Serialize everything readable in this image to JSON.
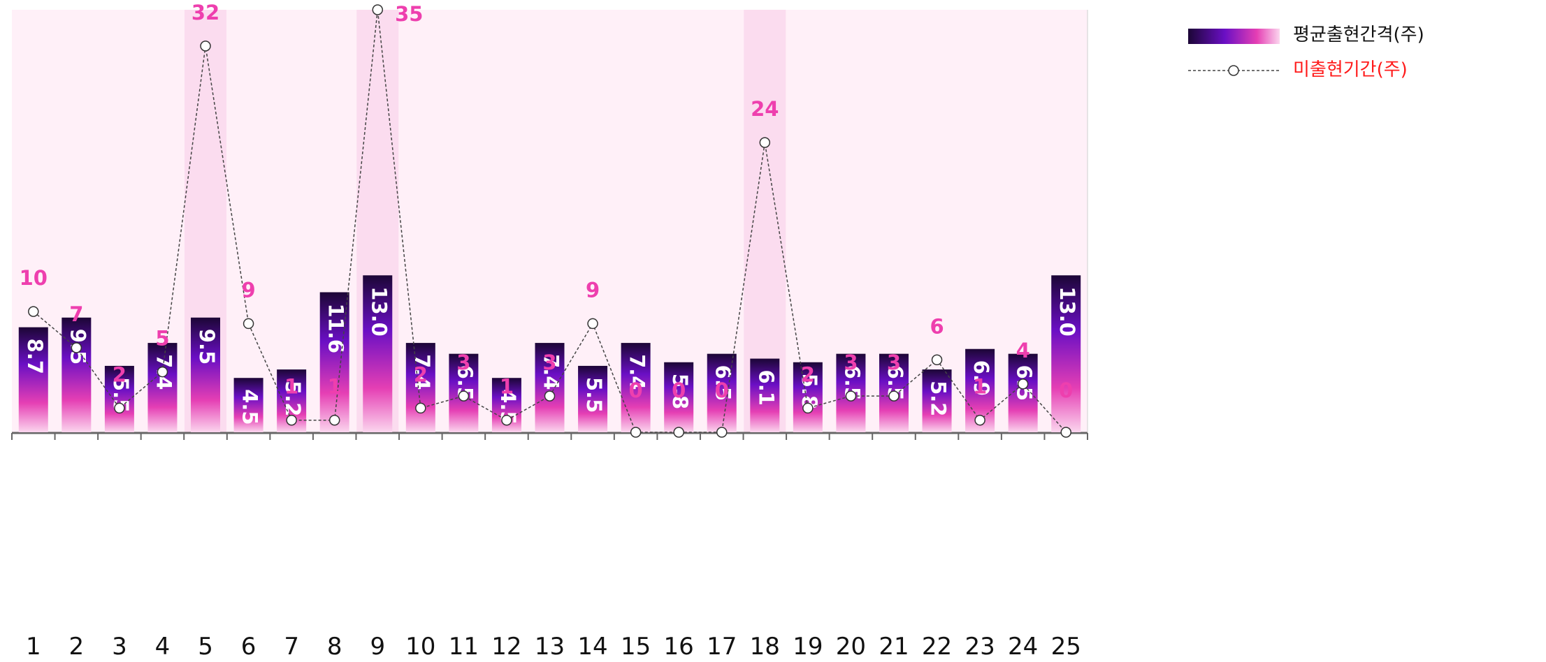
{
  "chart_data": {
    "type": "bar",
    "categories": [
      "1",
      "2",
      "3",
      "4",
      "5",
      "6",
      "7",
      "8",
      "9",
      "10",
      "11",
      "12",
      "13",
      "14",
      "15",
      "16",
      "17",
      "18",
      "19",
      "20",
      "21",
      "22",
      "23",
      "24",
      "25"
    ],
    "series": [
      {
        "name": "평균출현간격(주)",
        "type": "bar",
        "values": [
          8.7,
          9.5,
          5.5,
          7.4,
          9.5,
          4.5,
          5.2,
          11.6,
          13.0,
          7.4,
          6.5,
          4.5,
          7.4,
          5.5,
          7.4,
          5.8,
          6.5,
          6.1,
          5.8,
          6.5,
          6.5,
          5.2,
          6.9,
          6.5,
          13.0
        ],
        "value_labels": [
          "8.7",
          "9.5",
          "5.5",
          "7.4",
          "9.5",
          "4.5",
          "5.2",
          "11.6",
          "13.0",
          "7.4",
          "6.5",
          "4.5",
          "7.4",
          "5.5",
          "7.4",
          "5.8",
          "6.5",
          "6.1",
          "5.8",
          "6.5",
          "6.5",
          "5.2",
          "6.9",
          "6.5",
          "13.0"
        ]
      },
      {
        "name": "미출현기간(주)",
        "type": "line",
        "values": [
          10,
          7,
          2,
          5,
          32,
          9,
          1,
          1,
          35,
          2,
          3,
          1,
          3,
          9,
          0,
          0,
          0,
          24,
          2,
          3,
          3,
          6,
          1,
          4,
          0
        ],
        "value_labels": [
          "10",
          "7",
          "2",
          "5",
          "32",
          "9",
          "1",
          "1",
          "35",
          "2",
          "3",
          "1",
          "3",
          "9",
          "0",
          "0",
          "0",
          "24",
          "2",
          "3",
          "3",
          "6",
          "1",
          "4",
          "0"
        ]
      }
    ],
    "highlighted_categories": [
      "5",
      "9",
      "18"
    ],
    "ylim": [
      0,
      35
    ],
    "legend_position": "top-right",
    "colors": {
      "plot_background": "#fff0f8",
      "highlight_band": "#fbdcef",
      "bar_top": "#1c0636",
      "bar_mid": "#6a0fc4",
      "bar_low": "#e53fb4",
      "bar_bottom": "#fbd6ee",
      "line": "#444444",
      "point_label": "#ee3fae",
      "legend_line_label": "#ff1a1a",
      "axis": "#666666"
    }
  }
}
